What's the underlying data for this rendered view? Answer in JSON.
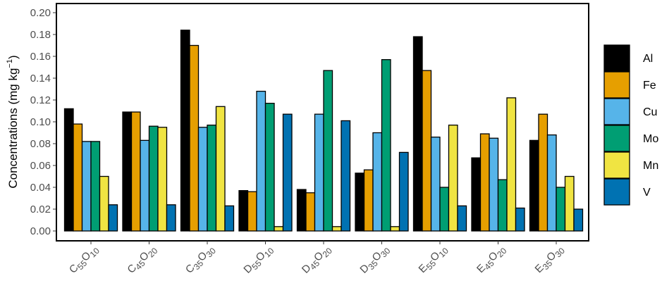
{
  "chart_data": {
    "type": "bar",
    "ylabel": "Concentrations (mg kg",
    "ylabel_sup": "−1",
    "ylabel_close": ")",
    "ylim": [
      0,
      0.2
    ],
    "yticks": [
      "0.00",
      "0.02",
      "0.04",
      "0.06",
      "0.08",
      "0.10",
      "0.12",
      "0.14",
      "0.16",
      "0.18",
      "0.20"
    ],
    "grid": false,
    "legend": "right",
    "categories": [
      {
        "a": "C",
        "as": "55",
        "b": "O",
        "bs": "10"
      },
      {
        "a": "C",
        "as": "45",
        "b": "O",
        "bs": "20"
      },
      {
        "a": "C",
        "as": "35",
        "b": "O",
        "bs": "30"
      },
      {
        "a": "D",
        "as": "55",
        "b": "O",
        "bs": "10"
      },
      {
        "a": "D",
        "as": "45",
        "b": "O",
        "bs": "20"
      },
      {
        "a": "D",
        "as": "35",
        "b": "O",
        "bs": "30"
      },
      {
        "a": "E",
        "as": "55",
        "b": "O",
        "bs": "10"
      },
      {
        "a": "E",
        "as": "45",
        "b": "O",
        "bs": "20"
      },
      {
        "a": "E",
        "as": "35",
        "b": "O",
        "bs": "30"
      }
    ],
    "series": [
      {
        "name": "Al",
        "color": "#000000",
        "values": [
          0.112,
          0.109,
          0.184,
          0.037,
          0.038,
          0.053,
          0.178,
          0.067,
          0.083
        ]
      },
      {
        "name": "Fe",
        "color": "#E69F00",
        "values": [
          0.098,
          0.109,
          0.17,
          0.036,
          0.035,
          0.056,
          0.147,
          0.089,
          0.107
        ]
      },
      {
        "name": "Cu",
        "color": "#56B4E9",
        "values": [
          0.082,
          0.083,
          0.095,
          0.128,
          0.107,
          0.09,
          0.086,
          0.085,
          0.088
        ]
      },
      {
        "name": "Mo",
        "color": "#009E73",
        "values": [
          0.082,
          0.096,
          0.097,
          0.117,
          0.147,
          0.157,
          0.04,
          0.047,
          0.04
        ]
      },
      {
        "name": "Mn",
        "color": "#F0E442",
        "values": [
          0.05,
          0.095,
          0.114,
          0.004,
          0.004,
          0.004,
          0.097,
          0.122,
          0.05
        ]
      },
      {
        "name": "V",
        "color": "#0072B2",
        "values": [
          0.024,
          0.024,
          0.023,
          0.107,
          0.101,
          0.072,
          0.023,
          0.021,
          0.02
        ]
      }
    ]
  }
}
